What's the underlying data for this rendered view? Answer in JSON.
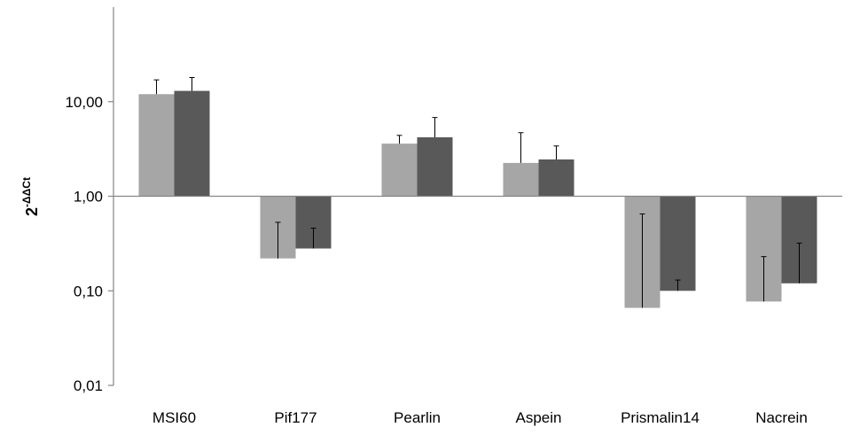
{
  "chart_data": {
    "type": "bar",
    "scale": "log",
    "categories": [
      "MSI60",
      "Pif177",
      "Pearlin",
      "Aspein",
      "Prismalin14",
      "Nacrein"
    ],
    "series": [
      {
        "color": "#a6a6a6",
        "values": [
          12.0,
          0.22,
          3.6,
          2.25,
          0.066,
          0.077
        ],
        "error_end": [
          17.0,
          0.53,
          4.4,
          4.7,
          0.65,
          0.23
        ]
      },
      {
        "color": "#595959",
        "values": [
          13.0,
          0.28,
          4.2,
          2.45,
          0.1,
          0.12
        ],
        "error_end": [
          18.0,
          0.46,
          6.8,
          3.4,
          0.13,
          0.32
        ]
      }
    ],
    "ylim": [
      0.01,
      100
    ],
    "baseline": 1,
    "yticks": [
      {
        "value": 0.01,
        "label": "0,01"
      },
      {
        "value": 0.1,
        "label": "0,10"
      },
      {
        "value": 1,
        "label": "1,00"
      },
      {
        "value": 10,
        "label": "10,00"
      }
    ],
    "ylabel": {
      "base": "2",
      "superscript": "-ΔΔCt"
    },
    "xlabel": "",
    "grid": false,
    "legend": "none"
  }
}
